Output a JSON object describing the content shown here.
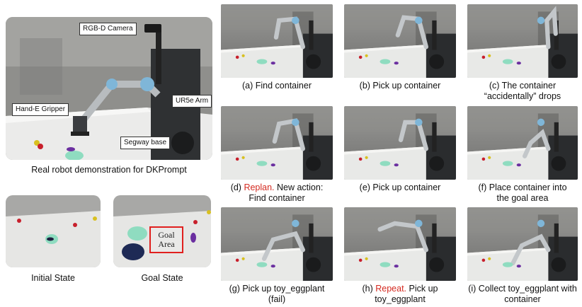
{
  "hero": {
    "caption": "Real robot demonstration for DKPrompt",
    "labels": {
      "camera": "RGB-D Camera",
      "arm": "UR5e Arm",
      "gripper": "Hand-E Gripper",
      "base": "Segway base"
    }
  },
  "states": {
    "initial_caption": "Initial State",
    "goal_caption": "Goal State",
    "goal_area_line1": "Goal",
    "goal_area_line2": "Area"
  },
  "steps": [
    {
      "l1": "(a) Find container",
      "l2": ""
    },
    {
      "l1": "(b) Pick up container",
      "l2": ""
    },
    {
      "l1": "(c) The container",
      "l2": "“accidentally” drops"
    },
    {
      "l1_red": "Replan.",
      "l1_pre": "(d) ",
      "l1_post": " New action:",
      "l2": "Find container"
    },
    {
      "l1": "(e) Pick up container",
      "l2": ""
    },
    {
      "l1": "(f) Place container into",
      "l2": "the goal area"
    },
    {
      "l1": "(g) Pick up toy_eggplant",
      "l2": "(fail)"
    },
    {
      "l1_pre": "(h) ",
      "l1_red": "Repeat.",
      "l1_post": " Pick up",
      "l2": "toy_eggplant"
    },
    {
      "l1": "(i) Collect toy_eggplant with",
      "l2": "container"
    }
  ],
  "colors": {
    "highlight_red": "#d42a20",
    "robot_arm": "#3a3f45",
    "bowl_teal": "#7fd6b8",
    "eggplant": "#6b2fa0"
  }
}
